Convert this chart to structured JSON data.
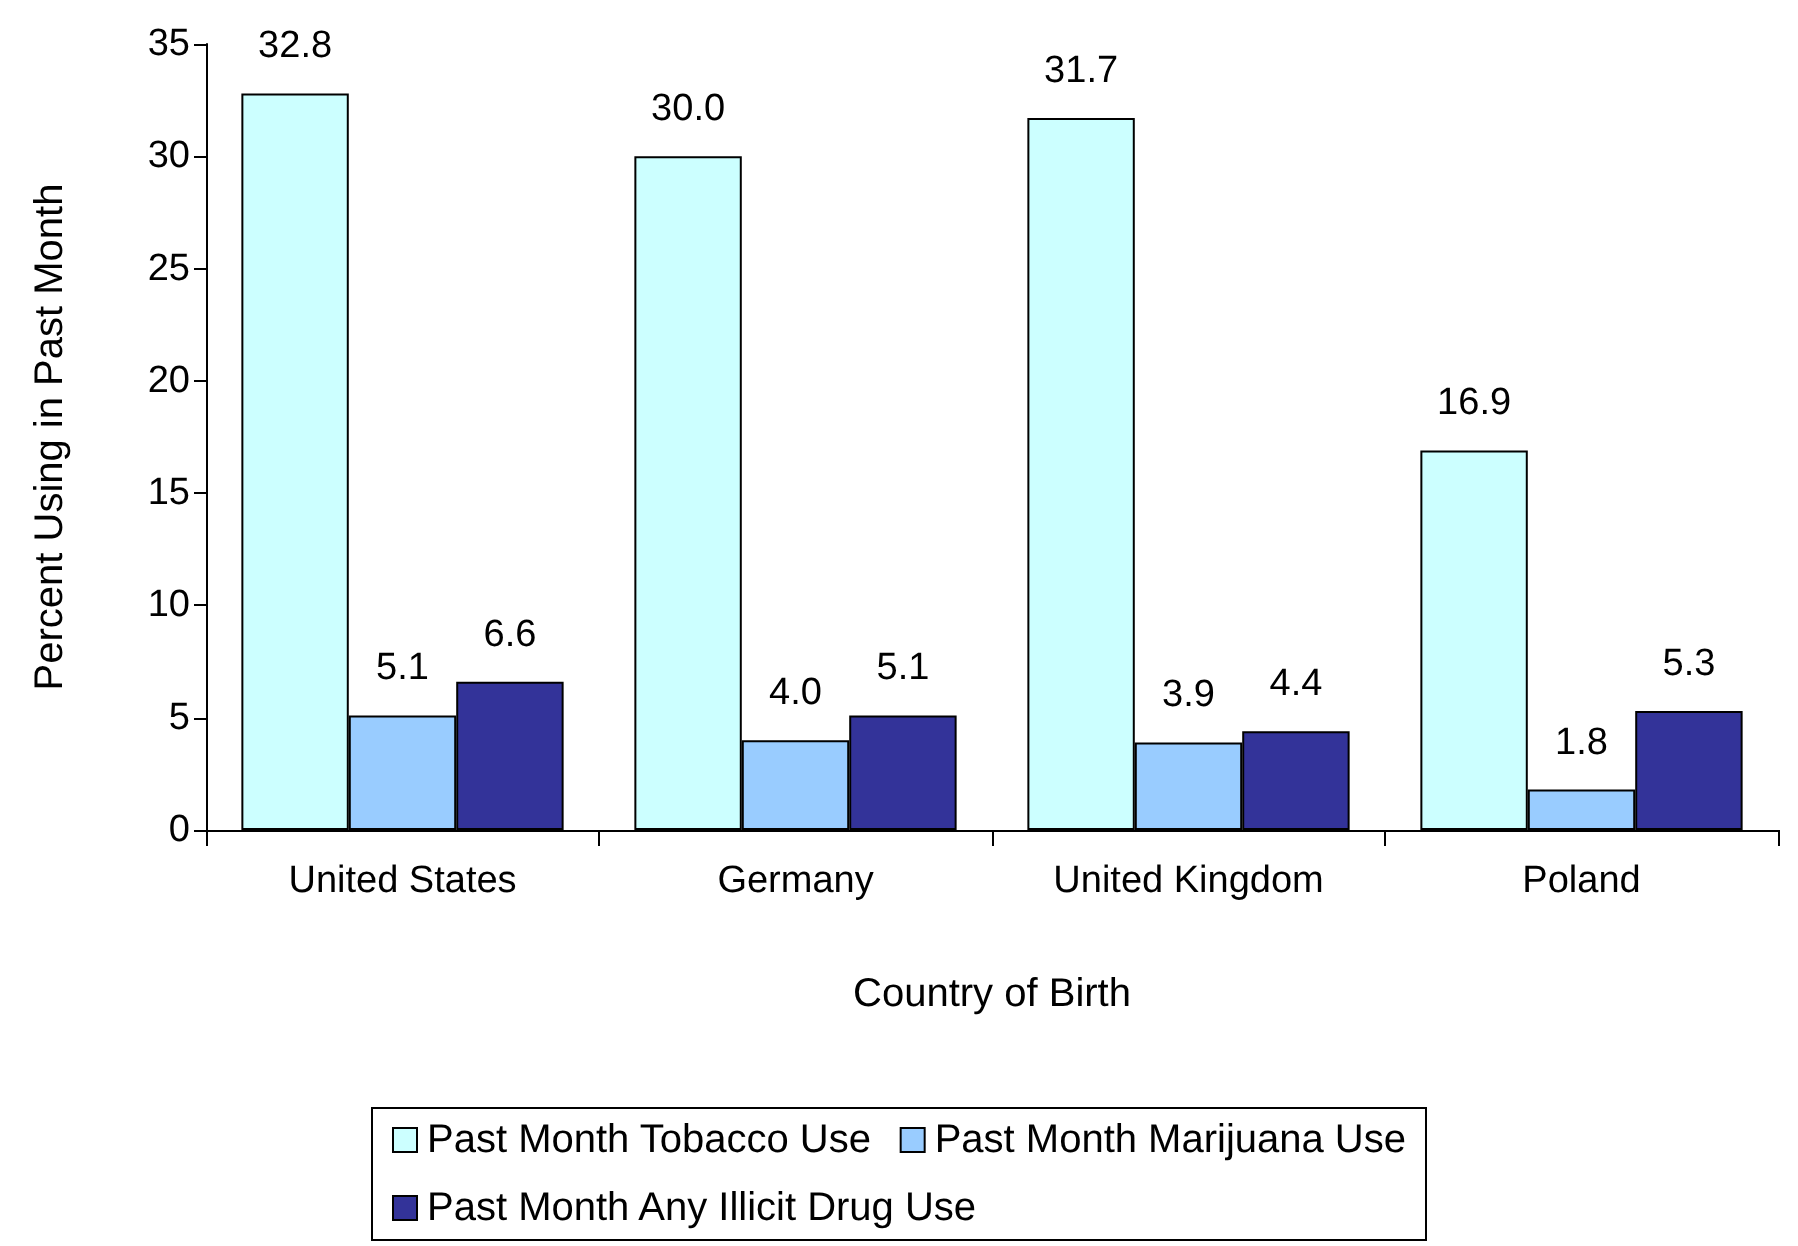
{
  "chart_data": {
    "type": "bar",
    "xlabel": "Country of Birth",
    "ylabel": "Percent Using in Past Month",
    "categories": [
      "United States",
      "Germany",
      "United Kingdom",
      "Poland"
    ],
    "series": [
      {
        "name": "Past Month Tobacco Use",
        "color": "#ccffff",
        "values": [
          32.8,
          30.0,
          31.7,
          16.9
        ],
        "value_labels": [
          "32.8",
          "30.0",
          "31.7",
          "16.9"
        ]
      },
      {
        "name": "Past Month Marijuana Use",
        "color": "#99ccff",
        "values": [
          5.1,
          4.0,
          3.9,
          1.8
        ],
        "value_labels": [
          "5.1",
          "4.0",
          "3.9",
          "1.8"
        ]
      },
      {
        "name": "Past Month Any Illicit Drug Use",
        "color": "#333399",
        "values": [
          6.6,
          5.1,
          4.4,
          5.3
        ],
        "value_labels": [
          "6.6",
          "5.1",
          "4.4",
          "5.3"
        ]
      }
    ],
    "ylim": [
      0,
      35
    ],
    "yticks": [
      0,
      5,
      10,
      15,
      20,
      25,
      30,
      35
    ],
    "grid": false,
    "legend": "bottom"
  }
}
